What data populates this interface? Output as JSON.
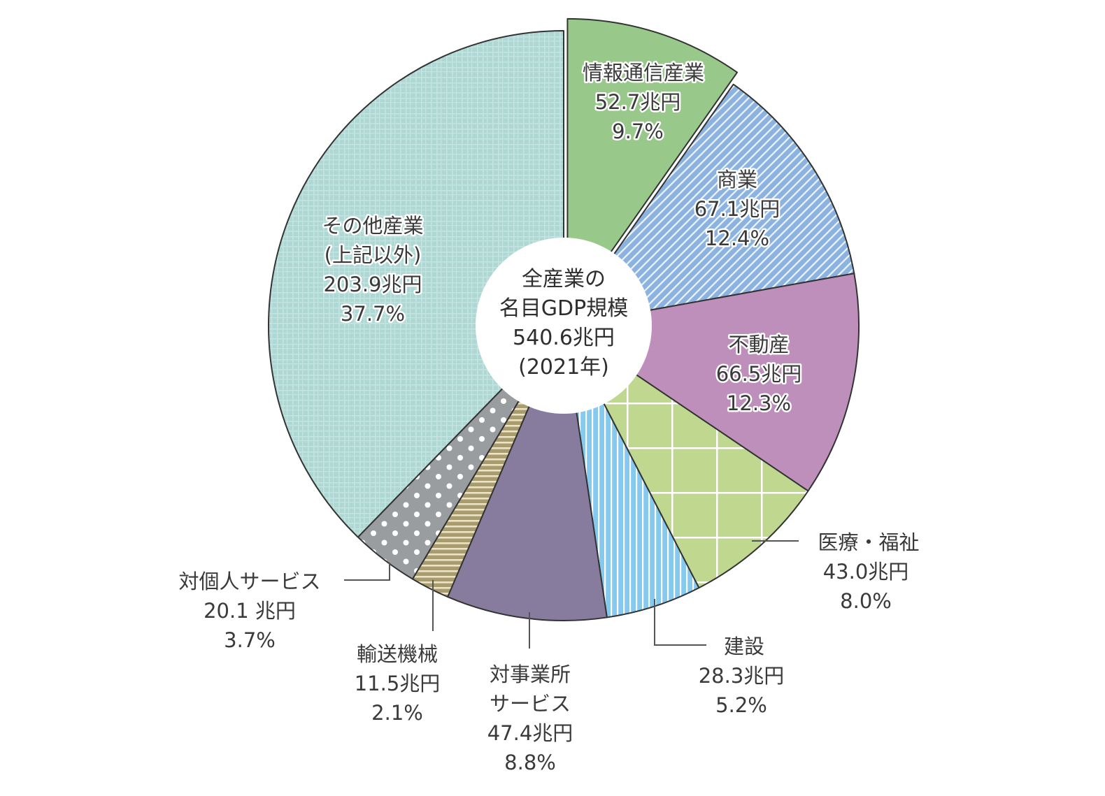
{
  "chart_data": {
    "type": "pie",
    "variant": "donut",
    "title": "全産業の名目GDP規模",
    "center_label": [
      "全産業の",
      "名目GDP規模",
      "540.6兆円",
      "(2021年)"
    ],
    "total": 540.6,
    "unit": "兆円",
    "year": "2021年",
    "start_angle": "12 o'clock, clockwise",
    "exploded_slice": "情報通信産業",
    "slices": [
      {
        "name": "情報通信産業",
        "value": 52.7,
        "value_label": "52.7兆円",
        "percent": 9.7,
        "percent_label": "9.7%",
        "color": "#99c98a",
        "pattern": "solid"
      },
      {
        "name": "商業",
        "value": 67.1,
        "value_label": "67.1兆円",
        "percent": 12.4,
        "percent_label": "12.4%",
        "color": "#8cb3e0",
        "pattern": "diagonal-stripes"
      },
      {
        "name": "不動産",
        "value": 66.5,
        "value_label": "66.5兆円",
        "percent": 12.3,
        "percent_label": "12.3%",
        "color": "#bf8fbc",
        "pattern": "solid"
      },
      {
        "name": "医療・福祉",
        "value": 43.0,
        "value_label": "43.0兆円",
        "percent": 8.0,
        "percent_label": "8.0%",
        "color": "#bfd78f",
        "pattern": "grid"
      },
      {
        "name": "建設",
        "value": 28.3,
        "value_label": "28.3兆円",
        "percent": 5.2,
        "percent_label": "5.2%",
        "color": "#86c9ee",
        "pattern": "vertical-stripes"
      },
      {
        "name": "対事業所サービス",
        "value": 47.4,
        "value_label": "47.4兆円",
        "percent": 8.8,
        "percent_label": "8.8%",
        "color": "#877c9e",
        "pattern": "solid"
      },
      {
        "name": "輸送機械",
        "value": 11.5,
        "value_label": "11.5兆円",
        "percent": 2.1,
        "percent_label": "2.1%",
        "color": "#b3a67a",
        "pattern": "horizontal-stripes"
      },
      {
        "name": "対個人サービス",
        "value": 20.1,
        "value_label": "20.1 兆円",
        "percent": 3.7,
        "percent_label": "3.7%",
        "color": "#9a9d9f",
        "pattern": "dots"
      },
      {
        "name": "その他産業(上記以外)",
        "value": 203.9,
        "value_label": "203.9兆円",
        "percent": 37.7,
        "percent_label": "37.7%",
        "color": "#aed8d4",
        "pattern": "fine-grid"
      }
    ],
    "legend": "none (inline labels)"
  },
  "labels": {
    "center": {
      "l1": "全産業の",
      "l2": "名目GDP規模",
      "l3": "540.6兆円",
      "l4": "(2021年)"
    },
    "joho": {
      "name": "情報通信産業",
      "value": "52.7兆円",
      "pct": "9.7%"
    },
    "shogyo": {
      "name": "商業",
      "value": "67.1兆円",
      "pct": "12.4%"
    },
    "fudosan": {
      "name": "不動産",
      "value": "66.5兆円",
      "pct": "12.3%"
    },
    "iryo": {
      "name": "医療・福祉",
      "value": "43.0兆円",
      "pct": "8.0%"
    },
    "kensetsu": {
      "name": "建設",
      "value": "28.3兆円",
      "pct": "5.2%"
    },
    "taijigyo": {
      "name1": "対事業所",
      "name2": "サービス",
      "value": "47.4兆円",
      "pct": "8.8%"
    },
    "yuso": {
      "name": "輸送機械",
      "value": "11.5兆円",
      "pct": "2.1%"
    },
    "taikojin": {
      "name": "対個人サービス",
      "value": "20.1 兆円",
      "pct": "3.7%"
    },
    "sonota": {
      "name1": "その他産業",
      "name2": "(上記以外)",
      "value": "203.9兆円",
      "pct": "37.7%"
    }
  }
}
